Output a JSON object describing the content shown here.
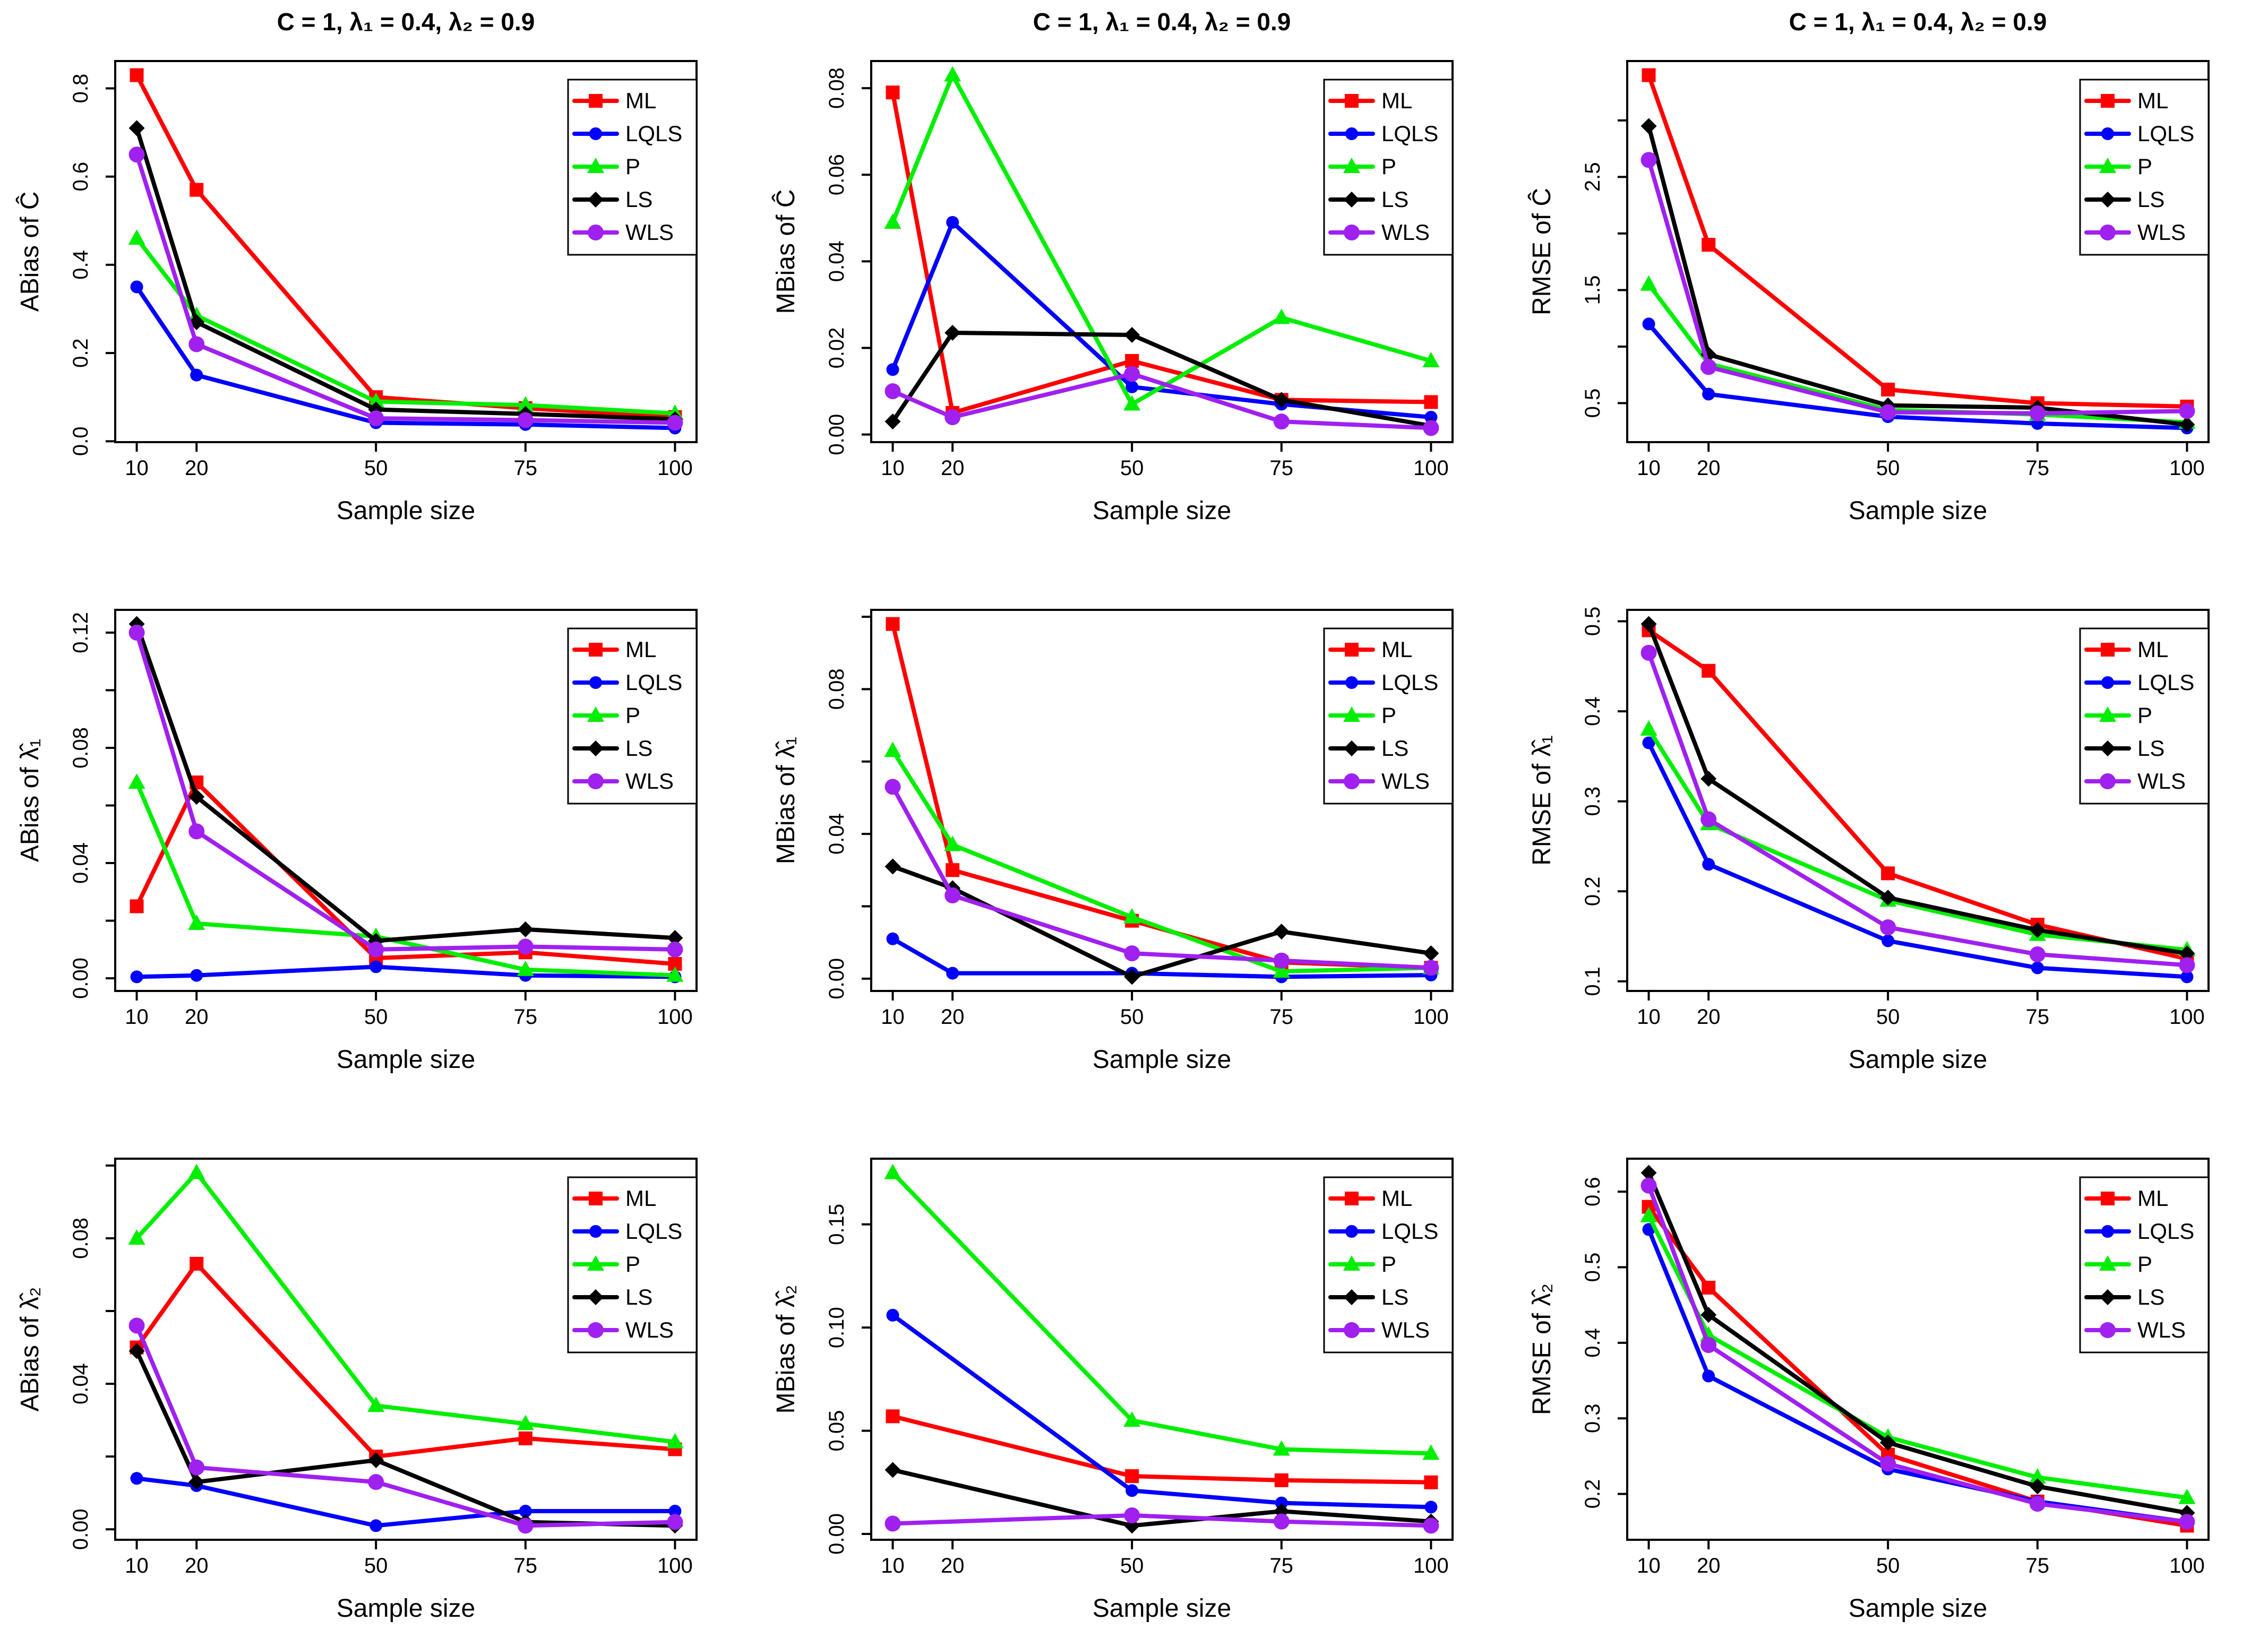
{
  "page": {
    "background": "#FFFFFF"
  },
  "series_meta": [
    {
      "name": "ML",
      "color": "#FF0000",
      "marker": "square"
    },
    {
      "name": "LQLS",
      "color": "#0000FF",
      "marker": "circle"
    },
    {
      "name": "P",
      "color": "#00EE00",
      "marker": "triangle-up"
    },
    {
      "name": "LS",
      "color": "#000000",
      "marker": "diamond"
    },
    {
      "name": "WLS",
      "color": "#A020F0",
      "marker": "circle-large"
    }
  ],
  "legend": {
    "entries": [
      "ML",
      "LQLS",
      "P",
      "LS",
      "WLS"
    ],
    "position": "top-right"
  },
  "chart_data": [
    {
      "type": "line",
      "title": "C = 1, λ₁ = 0.4, λ₂ = 0.9",
      "xlabel": "Sample size",
      "ylabel": "ABias of Ĉ",
      "x": [
        10,
        20,
        50,
        75,
        100
      ],
      "xticks": [
        10,
        20,
        50,
        75,
        100
      ],
      "xlim": [
        6.4,
        103.6
      ],
      "ylim": [
        0.03,
        0.83
      ],
      "yticks": [
        {
          "v": 0.0,
          "label": "0.0"
        },
        {
          "v": 0.2,
          "label": "0.2"
        },
        {
          "v": 0.4,
          "label": "0.4"
        },
        {
          "v": 0.6,
          "label": "0.6"
        },
        {
          "v": 0.8,
          "label": "0.8"
        }
      ],
      "grid": false,
      "series": [
        {
          "name": "ML",
          "values": [
            0.83,
            0.57,
            0.1,
            0.075,
            0.055
          ]
        },
        {
          "name": "LQLS",
          "values": [
            0.35,
            0.15,
            0.042,
            0.038,
            0.03
          ]
        },
        {
          "name": "P",
          "values": [
            0.46,
            0.285,
            0.09,
            0.082,
            0.063
          ]
        },
        {
          "name": "LS",
          "values": [
            0.71,
            0.27,
            0.072,
            0.062,
            0.05
          ]
        },
        {
          "name": "WLS",
          "values": [
            0.65,
            0.22,
            0.052,
            0.048,
            0.042
          ]
        }
      ]
    },
    {
      "type": "line",
      "title": "C = 1, λ₁ = 0.4, λ₂ = 0.9",
      "xlabel": "Sample size",
      "ylabel": "MBias of Ĉ",
      "x": [
        10,
        20,
        50,
        75,
        100
      ],
      "xticks": [
        10,
        20,
        50,
        75,
        100
      ],
      "xlim": [
        6.4,
        103.6
      ],
      "ylim": [
        0.0015,
        0.083
      ],
      "yticks": [
        {
          "v": 0.0,
          "label": "0.00"
        },
        {
          "v": 0.02,
          "label": "0.02"
        },
        {
          "v": 0.04,
          "label": "0.04"
        },
        {
          "v": 0.06,
          "label": "0.06"
        },
        {
          "v": 0.08,
          "label": "0.08"
        }
      ],
      "grid": false,
      "series": [
        {
          "name": "ML",
          "values": [
            0.079,
            0.005,
            0.017,
            0.008,
            0.0075
          ]
        },
        {
          "name": "LQLS",
          "values": [
            0.015,
            0.049,
            0.011,
            0.007,
            0.004
          ]
        },
        {
          "name": "P",
          "values": [
            0.049,
            0.083,
            0.007,
            0.027,
            0.017
          ]
        },
        {
          "name": "LS",
          "values": [
            0.003,
            0.0235,
            0.023,
            0.008,
            0.002
          ]
        },
        {
          "name": "WLS",
          "values": [
            0.01,
            0.004,
            0.014,
            0.003,
            0.0015
          ]
        }
      ]
    },
    {
      "type": "line",
      "title": "C = 1, λ₁ = 0.4, λ₂ = 0.9",
      "xlabel": "Sample size",
      "ylabel": "RMSE of Ĉ",
      "x": [
        10,
        20,
        50,
        75,
        100
      ],
      "xticks": [
        10,
        20,
        50,
        75,
        100
      ],
      "xlim": [
        6.4,
        103.6
      ],
      "ylim": [
        0.28,
        3.4
      ],
      "yticks": [
        {
          "v": 0.5,
          "label": "0.5"
        },
        {
          "v": 1.0,
          "label": ""
        },
        {
          "v": 1.5,
          "label": "1.5"
        },
        {
          "v": 2.0,
          "label": ""
        },
        {
          "v": 2.5,
          "label": "2.5"
        },
        {
          "v": 3.0,
          "label": ""
        }
      ],
      "grid": false,
      "series": [
        {
          "name": "ML",
          "values": [
            3.4,
            1.9,
            0.62,
            0.5,
            0.47
          ]
        },
        {
          "name": "LQLS",
          "values": [
            1.2,
            0.58,
            0.38,
            0.32,
            0.28
          ]
        },
        {
          "name": "P",
          "values": [
            1.55,
            0.85,
            0.44,
            0.4,
            0.33
          ]
        },
        {
          "name": "LS",
          "values": [
            2.95,
            0.93,
            0.48,
            0.46,
            0.31
          ]
        },
        {
          "name": "WLS",
          "values": [
            2.65,
            0.82,
            0.42,
            0.41,
            0.43
          ]
        }
      ]
    },
    {
      "type": "line",
      "xlabel": "Sample size",
      "ylabel": "ABias of λ̂₁",
      "x": [
        10,
        20,
        50,
        75,
        100
      ],
      "xticks": [
        10,
        20,
        50,
        75,
        100
      ],
      "xlim": [
        6.4,
        103.6
      ],
      "ylim": [
        0.0005,
        0.123
      ],
      "yticks": [
        {
          "v": 0.0,
          "label": "0.00"
        },
        {
          "v": 0.02,
          "label": ""
        },
        {
          "v": 0.04,
          "label": "0.04"
        },
        {
          "v": 0.06,
          "label": ""
        },
        {
          "v": 0.08,
          "label": "0.08"
        },
        {
          "v": 0.1,
          "label": ""
        },
        {
          "v": 0.12,
          "label": "0.12"
        }
      ],
      "grid": false,
      "series": [
        {
          "name": "ML",
          "values": [
            0.025,
            0.068,
            0.007,
            0.009,
            0.005
          ]
        },
        {
          "name": "LQLS",
          "values": [
            0.0005,
            0.001,
            0.004,
            0.001,
            0.0005
          ]
        },
        {
          "name": "P",
          "values": [
            0.068,
            0.019,
            0.0145,
            0.003,
            0.001
          ]
        },
        {
          "name": "LS",
          "values": [
            0.123,
            0.063,
            0.013,
            0.017,
            0.014
          ]
        },
        {
          "name": "WLS",
          "values": [
            0.12,
            0.051,
            0.01,
            0.011,
            0.01
          ]
        }
      ]
    },
    {
      "type": "line",
      "xlabel": "Sample size",
      "ylabel": "MBias of λ̂₁",
      "x": [
        10,
        20,
        50,
        75,
        100
      ],
      "xticks": [
        10,
        20,
        50,
        75,
        100
      ],
      "xlim": [
        6.4,
        103.6
      ],
      "ylim": [
        0.0005,
        0.098
      ],
      "yticks": [
        {
          "v": 0.0,
          "label": "0.00"
        },
        {
          "v": 0.02,
          "label": ""
        },
        {
          "v": 0.04,
          "label": "0.04"
        },
        {
          "v": 0.06,
          "label": ""
        },
        {
          "v": 0.08,
          "label": "0.08"
        },
        {
          "v": 0.1,
          "label": ""
        }
      ],
      "grid": false,
      "series": [
        {
          "name": "ML",
          "values": [
            0.098,
            0.03,
            0.016,
            0.0045,
            0.003
          ]
        },
        {
          "name": "LQLS",
          "values": [
            0.011,
            0.0015,
            0.0015,
            0.0005,
            0.001
          ]
        },
        {
          "name": "P",
          "values": [
            0.063,
            0.037,
            0.017,
            0.002,
            0.003
          ]
        },
        {
          "name": "LS",
          "values": [
            0.031,
            0.025,
            0.0005,
            0.013,
            0.007
          ]
        },
        {
          "name": "WLS",
          "values": [
            0.053,
            0.023,
            0.007,
            0.005,
            0.003
          ]
        }
      ]
    },
    {
      "type": "line",
      "xlabel": "Sample size",
      "ylabel": "RMSE of λ̂₁",
      "x": [
        10,
        20,
        50,
        75,
        100
      ],
      "xticks": [
        10,
        20,
        50,
        75,
        100
      ],
      "xlim": [
        6.4,
        103.6
      ],
      "ylim": [
        0.105,
        0.497
      ],
      "yticks": [
        {
          "v": 0.1,
          "label": "0.1"
        },
        {
          "v": 0.2,
          "label": "0.2"
        },
        {
          "v": 0.3,
          "label": "0.3"
        },
        {
          "v": 0.4,
          "label": "0.4"
        },
        {
          "v": 0.5,
          "label": "0.5"
        }
      ],
      "grid": false,
      "series": [
        {
          "name": "ML",
          "values": [
            0.49,
            0.445,
            0.22,
            0.163,
            0.125
          ]
        },
        {
          "name": "LQLS",
          "values": [
            0.365,
            0.23,
            0.145,
            0.115,
            0.105
          ]
        },
        {
          "name": "P",
          "values": [
            0.38,
            0.275,
            0.19,
            0.152,
            0.135
          ]
        },
        {
          "name": "LS",
          "values": [
            0.497,
            0.325,
            0.193,
            0.157,
            0.131
          ]
        },
        {
          "name": "WLS",
          "values": [
            0.465,
            0.28,
            0.16,
            0.13,
            0.118
          ]
        }
      ]
    },
    {
      "type": "line",
      "xlabel": "Sample size",
      "ylabel": "ABias of λ̂₂",
      "x": [
        10,
        20,
        50,
        75,
        100
      ],
      "xticks": [
        10,
        20,
        50,
        75,
        100
      ],
      "xlim": [
        6.4,
        103.6
      ],
      "ylim": [
        0.001,
        0.098
      ],
      "yticks": [
        {
          "v": 0.0,
          "label": "0.00"
        },
        {
          "v": 0.02,
          "label": ""
        },
        {
          "v": 0.04,
          "label": "0.04"
        },
        {
          "v": 0.06,
          "label": ""
        },
        {
          "v": 0.08,
          "label": "0.08"
        },
        {
          "v": 0.1,
          "label": ""
        }
      ],
      "grid": false,
      "series": [
        {
          "name": "ML",
          "values": [
            0.05,
            0.073,
            0.02,
            0.025,
            0.022
          ]
        },
        {
          "name": "LQLS",
          "values": [
            0.014,
            0.012,
            0.001,
            0.005,
            0.005
          ]
        },
        {
          "name": "P",
          "values": [
            0.08,
            0.098,
            0.034,
            0.029,
            0.024
          ]
        },
        {
          "name": "LS",
          "values": [
            0.049,
            0.013,
            0.019,
            0.002,
            0.001
          ]
        },
        {
          "name": "WLS",
          "values": [
            0.056,
            0.017,
            0.013,
            0.001,
            0.002
          ]
        }
      ]
    },
    {
      "type": "line",
      "xlabel": "Sample size",
      "ylabel": "MBias of λ̂₂",
      "x": [
        10,
        50,
        75,
        100
      ],
      "xticks": [
        10,
        20,
        50,
        75,
        100
      ],
      "xlim": [
        6.4,
        103.6
      ],
      "ylim": [
        0.004,
        0.175
      ],
      "yticks": [
        {
          "v": 0.0,
          "label": "0.00"
        },
        {
          "v": 0.05,
          "label": "0.05"
        },
        {
          "v": 0.1,
          "label": "0.10"
        },
        {
          "v": 0.15,
          "label": "0.15"
        }
      ],
      "grid": false,
      "series": [
        {
          "name": "ML",
          "values": [
            0.057,
            0.028,
            0.026,
            0.025
          ]
        },
        {
          "name": "LQLS",
          "values": [
            0.106,
            0.021,
            0.015,
            0.013
          ]
        },
        {
          "name": "P",
          "values": [
            0.175,
            0.055,
            0.041,
            0.039
          ]
        },
        {
          "name": "LS",
          "values": [
            0.031,
            0.004,
            0.011,
            0.006
          ]
        },
        {
          "name": "WLS",
          "values": [
            0.005,
            0.009,
            0.006,
            0.004
          ]
        }
      ]
    },
    {
      "type": "line",
      "xlabel": "Sample size",
      "ylabel": "RMSE of λ̂₂",
      "x": [
        10,
        20,
        50,
        75,
        100
      ],
      "xticks": [
        10,
        20,
        50,
        75,
        100
      ],
      "xlim": [
        6.4,
        103.6
      ],
      "ylim": [
        0.158,
        0.625
      ],
      "yticks": [
        {
          "v": 0.2,
          "label": "0.2"
        },
        {
          "v": 0.3,
          "label": "0.3"
        },
        {
          "v": 0.4,
          "label": "0.4"
        },
        {
          "v": 0.5,
          "label": "0.5"
        },
        {
          "v": 0.6,
          "label": "0.6"
        }
      ],
      "grid": false,
      "series": [
        {
          "name": "ML",
          "values": [
            0.58,
            0.473,
            0.252,
            0.19,
            0.158
          ]
        },
        {
          "name": "LQLS",
          "values": [
            0.55,
            0.356,
            0.233,
            0.19,
            0.163
          ]
        },
        {
          "name": "P",
          "values": [
            0.568,
            0.41,
            0.275,
            0.222,
            0.195
          ]
        },
        {
          "name": "LS",
          "values": [
            0.625,
            0.437,
            0.268,
            0.21,
            0.175
          ]
        },
        {
          "name": "WLS",
          "values": [
            0.608,
            0.397,
            0.24,
            0.187,
            0.163
          ]
        }
      ]
    }
  ]
}
